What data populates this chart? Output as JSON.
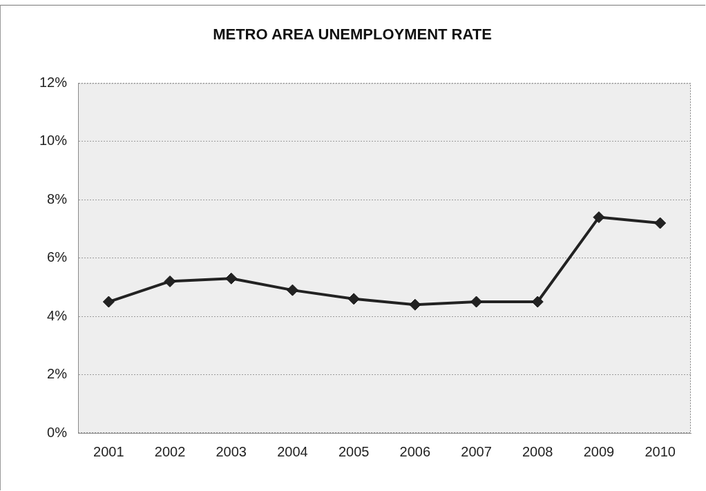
{
  "chart_data": {
    "type": "line",
    "title": "METRO AREA UNEMPLOYMENT RATE",
    "categories": [
      "2001",
      "2002",
      "2003",
      "2004",
      "2005",
      "2006",
      "2007",
      "2008",
      "2009",
      "2010"
    ],
    "series": [
      {
        "color": "#222222",
        "values": [
          4.5,
          5.2,
          5.3,
          4.9,
          4.6,
          4.4,
          4.5,
          4.5,
          7.4,
          7.2
        ]
      }
    ],
    "ylim": [
      0,
      12
    ],
    "yticks": [
      {
        "value": 0,
        "label": "0%"
      },
      {
        "value": 2,
        "label": "2%"
      },
      {
        "value": 4,
        "label": "4%"
      },
      {
        "value": 6,
        "label": "6%"
      },
      {
        "value": 8,
        "label": "8%"
      },
      {
        "value": 10,
        "label": "10%"
      },
      {
        "value": 12,
        "label": "12%"
      }
    ],
    "grid": "y",
    "legend": false,
    "marker": "diamond",
    "line_style": "solid"
  }
}
